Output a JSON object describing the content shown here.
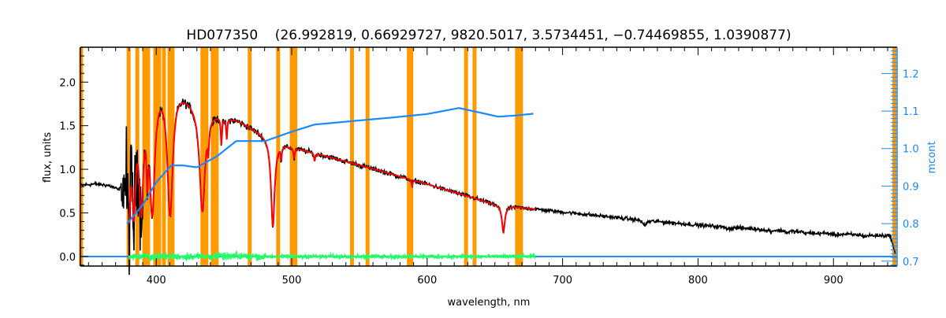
{
  "chart_data": {
    "type": "line",
    "title": "HD077350    (26.992819, 0.66929727, 9820.5017, 3.5734451, −0.74469855, 1.0390877)",
    "xlabel": "wavelength, nm",
    "ylabel": "flux, units",
    "y2label": "mcont",
    "xlim": [
      344,
      947
    ],
    "ylim": [
      -0.11,
      2.4
    ],
    "y2lim": [
      0.687,
      1.27
    ],
    "x_ticks": [
      400,
      500,
      600,
      700,
      800,
      900
    ],
    "x_tick_labels": [
      "400",
      "500",
      "600",
      "700",
      "800",
      "900"
    ],
    "y_ticks": [
      0.0,
      0.5,
      1.0,
      1.5,
      2.0
    ],
    "y_tick_labels": [
      "0.0",
      "0.5",
      "1.0",
      "1.5",
      "2.0"
    ],
    "y2_ticks": [
      0.7,
      0.8,
      0.9,
      1.0,
      1.1,
      1.2
    ],
    "y2_tick_labels": [
      "0.7",
      "0.8",
      "0.9",
      "1.0",
      "1.1",
      "1.2"
    ],
    "grid": false,
    "colors": {
      "observed": "#000000",
      "model": "#ff0000",
      "continuum": "#1a88ff",
      "residual": "#22ff66",
      "mask": "#ff9900",
      "axis2": "#1a88ff"
    },
    "series": [
      {
        "name": "observed flux",
        "axis": "left",
        "continuum_points": [
          [
            344,
            0.82
          ],
          [
            355,
            0.84
          ],
          [
            365,
            0.83
          ],
          [
            372,
            0.8
          ],
          [
            376,
            0.9
          ],
          [
            380,
            1.4
          ],
          [
            384,
            1.7
          ],
          [
            390,
            1.85
          ],
          [
            395,
            1.95
          ],
          [
            400,
            2.02
          ],
          [
            405,
            2.03
          ],
          [
            410,
            1.98
          ],
          [
            415,
            1.97
          ],
          [
            420,
            1.9
          ],
          [
            430,
            1.77
          ],
          [
            440,
            1.68
          ],
          [
            460,
            1.57
          ],
          [
            480,
            1.4
          ],
          [
            490,
            1.32
          ],
          [
            500,
            1.26
          ],
          [
            550,
            1.05
          ],
          [
            600,
            0.83
          ],
          [
            650,
            0.6
          ],
          [
            670,
            0.56
          ],
          [
            700,
            0.51
          ],
          [
            750,
            0.43
          ],
          [
            800,
            0.36
          ],
          [
            850,
            0.31
          ],
          [
            900,
            0.26
          ],
          [
            930,
            0.24
          ],
          [
            942,
            0.24
          ],
          [
            946,
            0.0
          ]
        ],
        "absorption_lines": [
          [
            379.8,
            0.7,
            1.2
          ],
          [
            383.5,
            0.72,
            1.5
          ],
          [
            388.9,
            0.72,
            1.8
          ],
          [
            393.4,
            0.5,
            0.6
          ],
          [
            397.0,
            0.75,
            2.2
          ],
          [
            410.2,
            0.76,
            2.4
          ],
          [
            434.0,
            0.7,
            2.4
          ],
          [
            486.1,
            0.75,
            1.6
          ],
          [
            656.3,
            0.52,
            1.3
          ],
          [
            438.4,
            0.2,
            0.6
          ],
          [
            448.1,
            0.2,
            0.5
          ],
          [
            452,
            0.15,
            0.5
          ],
          [
            492.2,
            0.12,
            0.5
          ],
          [
            501.8,
            0.1,
            0.5
          ],
          [
            516.9,
            0.08,
            0.5
          ],
          [
            588.9,
            0.08,
            0.5
          ],
          [
            760.5,
            0.15,
            1.5
          ],
          [
            823,
            0.05,
            3
          ],
          [
            850,
            0.06,
            1
          ],
          [
            854,
            0.07,
            1
          ],
          [
            866,
            0.08,
            1.2
          ],
          [
            880,
            0.06,
            1.5
          ],
          [
            887,
            0.05,
            1.2
          ],
          [
            901,
            0.06,
            1.5
          ],
          [
            923,
            0.06,
            1.5
          ]
        ],
        "noise": [
          [
            344,
            0.015
          ],
          [
            374,
            0.015
          ],
          [
            376,
            0.45
          ],
          [
            388,
            0.35
          ],
          [
            392,
            0.04
          ],
          [
            500,
            0.02
          ],
          [
            700,
            0.015
          ],
          [
            946,
            0.015
          ]
        ]
      },
      {
        "name": "model fit",
        "axis": "left",
        "range": [
          380,
          680
        ]
      },
      {
        "name": "mcont",
        "axis": "right",
        "points": [
          [
            378.4,
            0.8
          ],
          [
            390,
            0.85
          ],
          [
            400,
            0.91
          ],
          [
            411,
            0.955
          ],
          [
            420,
            0.955
          ],
          [
            430,
            0.95
          ],
          [
            445,
            0.98
          ],
          [
            459,
            1.02
          ],
          [
            480.5,
            1.02
          ],
          [
            500,
            1.045
          ],
          [
            517,
            1.064
          ],
          [
            550,
            1.075
          ],
          [
            575,
            1.083
          ],
          [
            600,
            1.092
          ],
          [
            623.5,
            1.108
          ],
          [
            640,
            1.095
          ],
          [
            652.5,
            1.085
          ],
          [
            665,
            1.088
          ],
          [
            678.6,
            1.093
          ]
        ]
      },
      {
        "name": "residual",
        "axis": "left",
        "range": [
          380,
          680
        ],
        "level": 0.0,
        "noise": 0.02
      },
      {
        "name": "zero line",
        "axis": "left",
        "value": 0.0,
        "range": [
          344,
          947
        ]
      }
    ],
    "mask_bands_nm": [
      344.5,
      379.6,
      386.0,
      391.2,
      394.0,
      399.3,
      402.2,
      405.7,
      409.8,
      412.0,
      434.1,
      437.0,
      441.7,
      444.6,
      469.0,
      490.0,
      500.0,
      502.7,
      544.5,
      556.0,
      586.5,
      588.3,
      628.7,
      635.0,
      666.4,
      669.3,
      945.0
    ]
  }
}
